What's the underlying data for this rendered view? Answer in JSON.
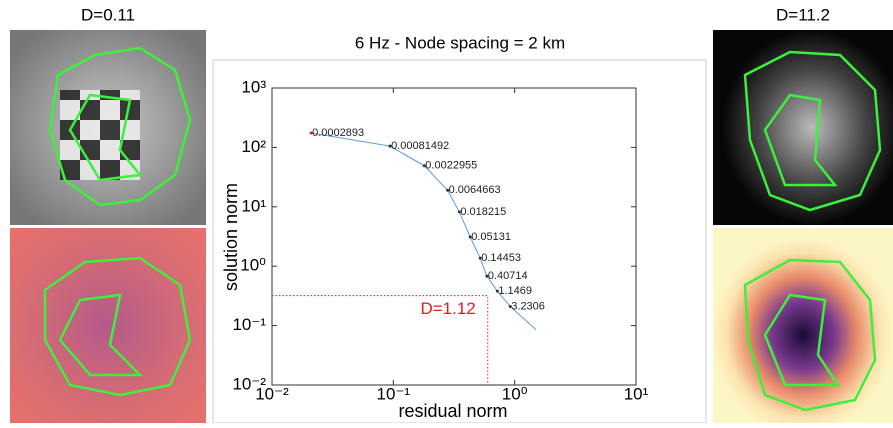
{
  "images": {
    "left_title": "D=0.11",
    "right_title": "D=11.2"
  },
  "chart_data": {
    "type": "scatter",
    "title": "6 Hz - Node spacing = 2 km",
    "xlabel": "residual norm",
    "ylabel": "solution norm",
    "log_x": true,
    "log_y": true,
    "xlim": [
      0.01,
      10
    ],
    "ylim": [
      0.01,
      1000
    ],
    "xticks": [
      {
        "value": 0.01,
        "label": "10⁻²"
      },
      {
        "value": 0.1,
        "label": "10⁻¹"
      },
      {
        "value": 1,
        "label": "10⁰"
      },
      {
        "value": 10,
        "label": "10¹"
      }
    ],
    "yticks": [
      {
        "value": 0.01,
        "label": "10⁻²"
      },
      {
        "value": 0.1,
        "label": "10⁻¹"
      },
      {
        "value": 1,
        "label": "10⁰"
      },
      {
        "value": 10,
        "label": "10¹"
      },
      {
        "value": 100,
        "label": "10²"
      },
      {
        "value": 1000,
        "label": "10³"
      }
    ],
    "x": [
      0.021,
      0.094,
      0.18,
      0.28,
      0.35,
      0.43,
      0.52,
      0.59,
      0.72,
      0.92
    ],
    "y": [
      175,
      105,
      49,
      19,
      8.2,
      3.1,
      1.37,
      0.68,
      0.38,
      0.21
    ],
    "point_labels": [
      "0.0002893",
      "0.00081492",
      "0.0022955",
      "0.0064663",
      "0.018215",
      "0.05131",
      "0.14453",
      "0.40714",
      "1.1469",
      "3.2306"
    ],
    "curve_x": [
      0.021,
      0.094,
      0.18,
      0.28,
      0.35,
      0.43,
      0.52,
      0.59,
      0.72,
      0.92,
      1.5
    ],
    "curve_y": [
      175,
      105,
      49,
      19,
      8.2,
      3.1,
      1.37,
      0.68,
      0.38,
      0.21,
      0.085
    ],
    "curve_color": "#5b9bd5",
    "corner": {
      "x": 0.6,
      "y": 0.32,
      "label": "D=1.12",
      "color": "#e41a1c"
    }
  }
}
